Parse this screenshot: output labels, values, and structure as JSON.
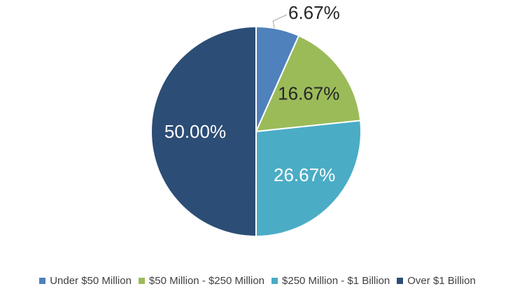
{
  "chart_data": {
    "type": "pie",
    "title": "",
    "categories": [
      "Under $50 Million",
      "$50 Million - $250 Million",
      "$250 Million - $1 Billion",
      "Over $1 Billion"
    ],
    "values": [
      6.67,
      16.67,
      26.67,
      50.0
    ],
    "data_labels": [
      "6.67%",
      "16.67%",
      "26.67%",
      "50.00%"
    ],
    "colors": [
      "#4F81BD",
      "#9BBB59",
      "#4BACC6",
      "#2C4D75"
    ],
    "label_colors": [
      "#262626",
      "#262626",
      "#ffffff",
      "#ffffff"
    ],
    "legend_position": "bottom"
  }
}
